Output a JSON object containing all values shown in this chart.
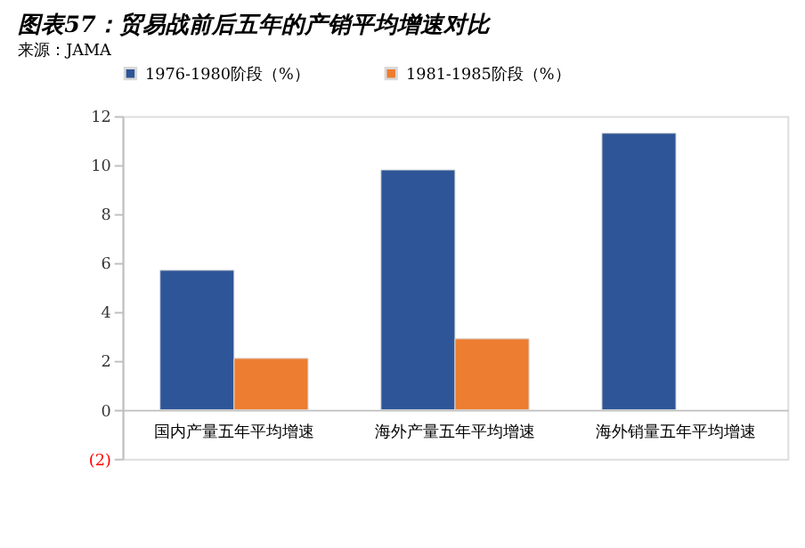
{
  "chart_data": {
    "type": "bar",
    "title": "图表57：贸易战前后五年的产销平均增速对比",
    "categories": [
      "国内产量五年平均增速",
      "海外产量五年平均增速",
      "海外销量五年平均增速"
    ],
    "series": [
      {
        "name": "1976-1980阶段（%）",
        "color": "#2e5597",
        "values": [
          5.7,
          9.8,
          11.3
        ]
      },
      {
        "name": "1981-1985阶段（%）",
        "color": "#ed7d31",
        "values": [
          2.1,
          2.9,
          null
        ]
      }
    ],
    "ylim": [
      -2,
      12
    ],
    "yticks": [
      {
        "value": -2,
        "label": "(2)"
      },
      0,
      2,
      4,
      6,
      8,
      10,
      12
    ],
    "grid": false,
    "legend": "top",
    "annotations": [
      "来源：JAMA"
    ]
  }
}
